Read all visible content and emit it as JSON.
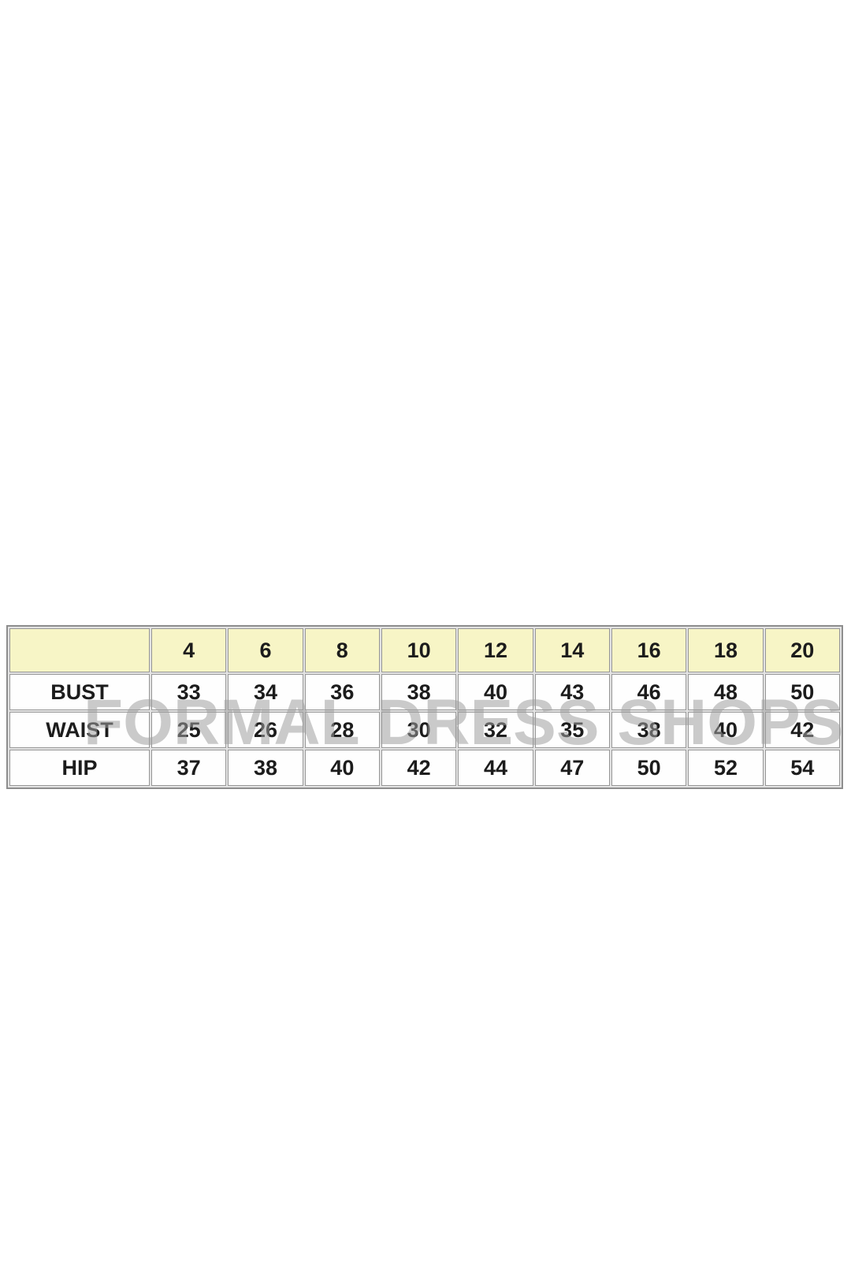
{
  "page": {
    "background": "#ffffff"
  },
  "watermark": {
    "text": "FORMAL DRESS SHOPS",
    "color": "rgba(158,158,158,0.55)"
  },
  "size_chart": {
    "corner_label": "",
    "sizes": [
      "4",
      "6",
      "8",
      "10",
      "12",
      "14",
      "16",
      "18",
      "20"
    ],
    "rows": [
      {
        "label": "BUST",
        "values": [
          "33",
          "34",
          "36",
          "38",
          "40",
          "43",
          "46",
          "48",
          "50"
        ]
      },
      {
        "label": "WAIST",
        "values": [
          "25",
          "26",
          "28",
          "30",
          "32",
          "35",
          "38",
          "40",
          "42"
        ]
      },
      {
        "label": "HIP",
        "values": [
          "37",
          "38",
          "40",
          "42",
          "44",
          "47",
          "50",
          "52",
          "54"
        ]
      }
    ],
    "colors": {
      "header_bg": "#f7f5c6",
      "label_bg": "#cbcbcb",
      "cell_bg": "#fefefe",
      "border": "#979797",
      "outer_border": "#8e8e8e",
      "text": "#1c1c1c"
    }
  },
  "chart_data": {
    "type": "table",
    "title": "",
    "columns": [
      "",
      "4",
      "6",
      "8",
      "10",
      "12",
      "14",
      "16",
      "18",
      "20"
    ],
    "rows": [
      [
        "BUST",
        33,
        34,
        36,
        38,
        40,
        43,
        46,
        48,
        50
      ],
      [
        "WAIST",
        25,
        26,
        28,
        30,
        32,
        35,
        38,
        40,
        42
      ],
      [
        "HIP",
        37,
        38,
        40,
        42,
        44,
        47,
        50,
        52,
        54
      ]
    ],
    "watermark": "FORMAL DRESS SHOPS",
    "layout_hints": {
      "header_row_background": "#f7f5c6",
      "label_column_background": "#cbcbcb",
      "grid": true
    }
  }
}
